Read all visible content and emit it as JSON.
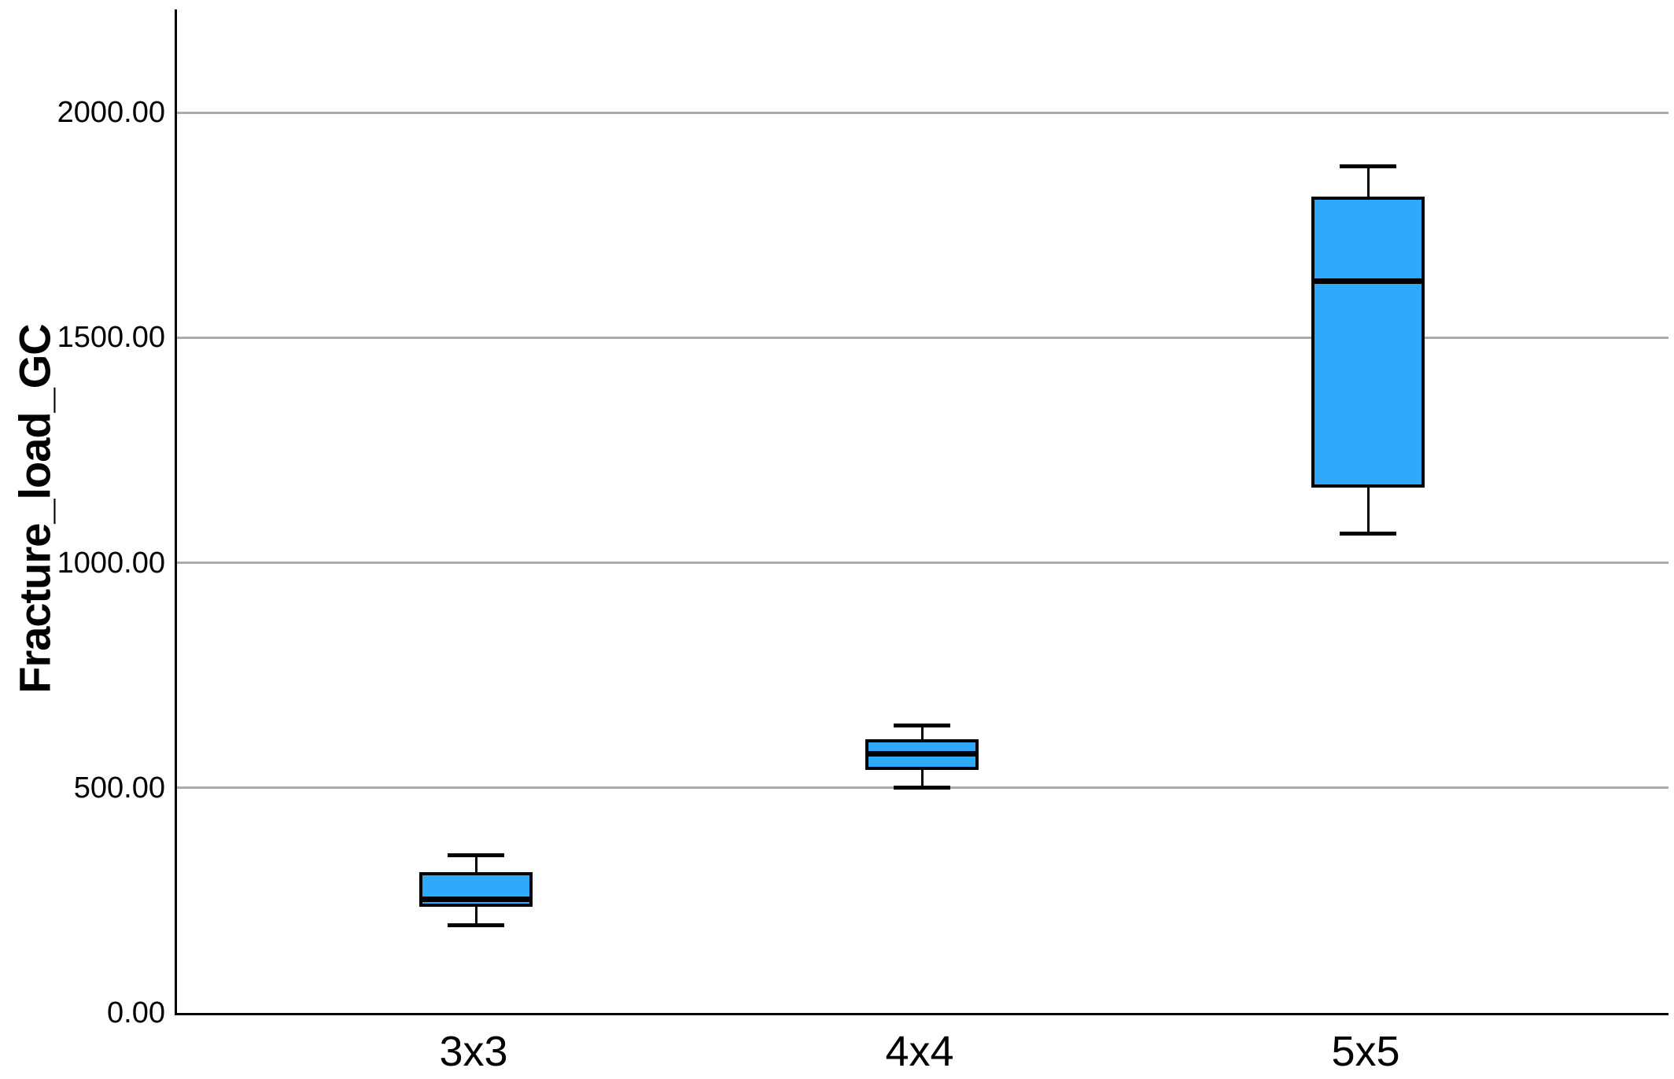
{
  "chart_data": {
    "type": "box",
    "title": "",
    "xlabel": "",
    "ylabel": "Fracture_load_GC",
    "categories": [
      "3x3",
      "4x4",
      "5x5"
    ],
    "y_ticks": [
      {
        "value": 0,
        "label": "0.00"
      },
      {
        "value": 500,
        "label": "500.00"
      },
      {
        "value": 1000,
        "label": "1000.00"
      },
      {
        "value": 1500,
        "label": "1500.00"
      },
      {
        "value": 2000,
        "label": "2000.00"
      }
    ],
    "ylim": [
      0,
      2230
    ],
    "grid": "horizontal-gray-lines",
    "legend": "none",
    "series": [
      {
        "category": "3x3",
        "min": 195,
        "q1": 240,
        "median": 252,
        "q3": 310,
        "max": 350
      },
      {
        "category": "4x4",
        "min": 500,
        "q1": 543,
        "median": 576,
        "q3": 604,
        "max": 638
      },
      {
        "category": "5x5",
        "min": 1065,
        "q1": 1170,
        "median": 1625,
        "q3": 1810,
        "max": 1880
      }
    ],
    "colors": {
      "box_fill": "#31A9FB",
      "box_border": "#000000",
      "median": "#000000",
      "whisker": "#000000",
      "gridline": "#ABABAB",
      "axis": "#000000",
      "background": "#FFFFFF"
    }
  }
}
